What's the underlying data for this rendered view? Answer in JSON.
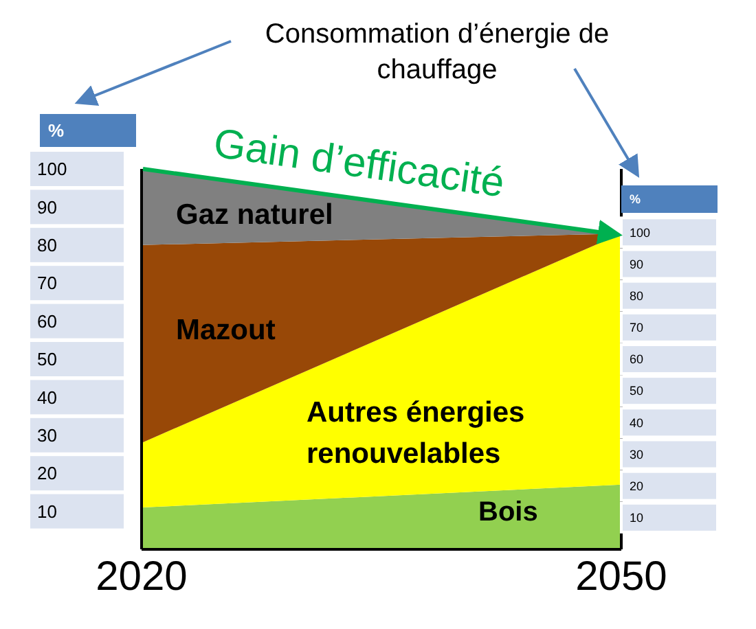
{
  "chart_data": {
    "type": "area",
    "stacked": true,
    "title": "Consommation d’énergie de chauffage",
    "annotations": [
      "Gain d’efficacité"
    ],
    "ylabel": "%",
    "y2label": "%",
    "x": [
      2020,
      2050
    ],
    "xlim": [
      2020,
      2050
    ],
    "xticks": [
      2020,
      2050
    ],
    "ylim": [
      0,
      100
    ],
    "yticks": [
      10,
      20,
      30,
      40,
      50,
      60,
      70,
      80,
      90,
      100
    ],
    "y2lim": [
      0,
      120
    ],
    "y2ticks": [
      10,
      20,
      30,
      40,
      50,
      60,
      70,
      80,
      90,
      100
    ],
    "series": [
      {
        "name": "Bois",
        "color": "#92d050",
        "values": [
          11,
          17
        ]
      },
      {
        "name": "Autres énergies renouvelables",
        "color": "#ffff00",
        "values": [
          17,
          66
        ]
      },
      {
        "name": "Mazout",
        "color": "#984807",
        "values": [
          52,
          0
        ]
      },
      {
        "name": "Gaz naturel",
        "color": "#808080",
        "values": [
          20,
          0
        ]
      }
    ],
    "grid": false,
    "legend": false
  }
}
